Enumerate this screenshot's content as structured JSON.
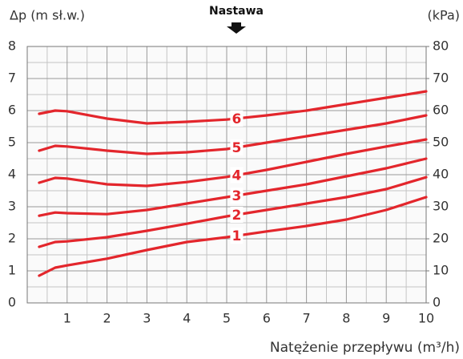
{
  "chart_data": {
    "type": "line",
    "ylabel": "Δp (m sł.w.)",
    "y2label": "(kPa)",
    "annotation": "Nastawa",
    "xlabel": "Natężenie przepływu (m³/h)",
    "x": [
      0.3,
      0.7,
      1,
      2,
      3,
      4,
      5,
      6,
      7,
      8,
      9,
      10
    ],
    "series": [
      {
        "name": "1",
        "color": "#e3262c",
        "values": [
          0.85,
          1.1,
          1.17,
          1.38,
          1.65,
          1.9,
          2.05,
          2.23,
          2.4,
          2.6,
          2.9,
          3.3
        ]
      },
      {
        "name": "2",
        "color": "#e3262c",
        "values": [
          1.75,
          1.9,
          1.92,
          2.05,
          2.25,
          2.47,
          2.7,
          2.9,
          3.1,
          3.3,
          3.55,
          3.92
        ]
      },
      {
        "name": "3",
        "color": "#e3262c",
        "values": [
          2.72,
          2.82,
          2.8,
          2.77,
          2.9,
          3.1,
          3.3,
          3.5,
          3.7,
          3.95,
          4.2,
          4.5
        ]
      },
      {
        "name": "4",
        "color": "#e3262c",
        "values": [
          3.75,
          3.9,
          3.88,
          3.7,
          3.65,
          3.77,
          3.93,
          4.15,
          4.4,
          4.65,
          4.88,
          5.1
        ]
      },
      {
        "name": "5",
        "color": "#e3262c",
        "values": [
          4.75,
          4.9,
          4.88,
          4.75,
          4.65,
          4.7,
          4.8,
          5.0,
          5.2,
          5.4,
          5.6,
          5.85
        ]
      },
      {
        "name": "6",
        "color": "#e3262c",
        "values": [
          5.9,
          6.0,
          5.98,
          5.75,
          5.6,
          5.65,
          5.72,
          5.85,
          6.0,
          6.2,
          6.4,
          6.6
        ]
      }
    ],
    "xlim": [
      0,
      10
    ],
    "xticks": [
      1,
      2,
      3,
      4,
      5,
      6,
      7,
      8,
      9,
      10
    ],
    "ylim": [
      0,
      8
    ],
    "yticks": [
      0,
      1,
      2,
      3,
      4,
      5,
      6,
      7,
      8
    ],
    "y2lim": [
      0,
      80
    ],
    "y2ticks": [
      0,
      10,
      20,
      30,
      40,
      50,
      60,
      70,
      80
    ],
    "grid": true
  }
}
